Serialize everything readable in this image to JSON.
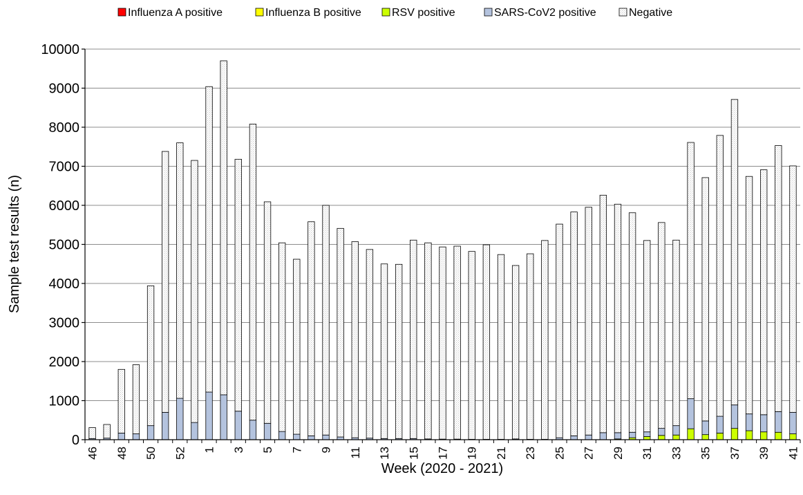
{
  "chart_data": {
    "type": "bar",
    "stacked": true,
    "title": "",
    "xlabel": "Week (2020 - 2021)",
    "ylabel": "Sample test results (n)",
    "ylim": [
      0,
      10000
    ],
    "yticks": [
      0,
      1000,
      2000,
      3000,
      4000,
      5000,
      6000,
      7000,
      8000,
      9000,
      10000
    ],
    "grid": true,
    "legend_position": "top",
    "categories": [
      46,
      47,
      48,
      49,
      50,
      51,
      52,
      53,
      1,
      2,
      3,
      4,
      5,
      6,
      7,
      8,
      9,
      10,
      11,
      12,
      13,
      14,
      15,
      16,
      17,
      18,
      19,
      20,
      21,
      22,
      23,
      24,
      25,
      26,
      27,
      28,
      29,
      30,
      31,
      32,
      33,
      34,
      35,
      36,
      37,
      38,
      39,
      40,
      41
    ],
    "tick_labels": [
      "46",
      "",
      "48",
      "",
      "50",
      "",
      "52",
      "",
      "1",
      "",
      "3",
      "",
      "5",
      "",
      "7",
      "",
      "9",
      "",
      "11",
      "",
      "13",
      "",
      "15",
      "",
      "17",
      "",
      "19",
      "",
      "21",
      "",
      "23",
      "",
      "25",
      "",
      "27",
      "",
      "29",
      "",
      "31",
      "",
      "33",
      "",
      "35",
      "",
      "37",
      "",
      "39",
      "",
      "41"
    ],
    "series": [
      {
        "name": "Influenza A positive",
        "color": "#ff0000",
        "values": [
          0,
          0,
          0,
          0,
          0,
          0,
          0,
          0,
          0,
          0,
          0,
          0,
          0,
          0,
          0,
          0,
          0,
          0,
          0,
          0,
          0,
          0,
          0,
          0,
          0,
          0,
          0,
          0,
          0,
          0,
          0,
          0,
          0,
          0,
          0,
          0,
          0,
          0,
          0,
          0,
          0,
          0,
          0,
          0,
          0,
          0,
          0,
          0,
          0
        ]
      },
      {
        "name": "Influenza B positive",
        "color": "#ffff00",
        "values": [
          0,
          0,
          0,
          0,
          0,
          0,
          0,
          0,
          0,
          0,
          0,
          0,
          0,
          0,
          0,
          0,
          0,
          0,
          0,
          0,
          0,
          0,
          0,
          0,
          0,
          0,
          0,
          0,
          0,
          0,
          0,
          0,
          0,
          0,
          0,
          0,
          0,
          0,
          0,
          0,
          0,
          0,
          0,
          0,
          0,
          0,
          0,
          0,
          0
        ]
      },
      {
        "name": "RSV positive",
        "color": "#ccff00",
        "values": [
          0,
          0,
          0,
          0,
          0,
          0,
          0,
          0,
          0,
          0,
          0,
          0,
          0,
          0,
          0,
          0,
          0,
          0,
          0,
          0,
          0,
          0,
          0,
          0,
          0,
          0,
          0,
          0,
          0,
          0,
          0,
          0,
          0,
          0,
          0,
          0,
          20,
          50,
          80,
          110,
          120,
          280,
          130,
          170,
          290,
          230,
          200,
          190,
          150
        ]
      },
      {
        "name": "SARS-CoV2 positive",
        "color": "#b4c3de",
        "values": [
          30,
          40,
          170,
          150,
          360,
          700,
          1060,
          440,
          1220,
          1150,
          730,
          500,
          420,
          210,
          140,
          100,
          120,
          70,
          50,
          40,
          30,
          30,
          30,
          20,
          15,
          15,
          10,
          10,
          10,
          20,
          10,
          10,
          50,
          100,
          120,
          180,
          160,
          140,
          120,
          180,
          240,
          770,
          350,
          430,
          600,
          430,
          440,
          530,
          550
        ]
      },
      {
        "name": "Negative",
        "color": "#ffffff",
        "values": [
          280,
          350,
          1630,
          1770,
          3580,
          6680,
          6540,
          6710,
          7820,
          8550,
          6450,
          7580,
          5670,
          4830,
          4480,
          5480,
          5880,
          5340,
          5020,
          4830,
          4470,
          4460,
          5080,
          5020,
          4920,
          4940,
          4810,
          4980,
          4730,
          4440,
          4750,
          5090,
          5470,
          5730,
          5830,
          6080,
          5850,
          5620,
          4900,
          5270,
          4750,
          6560,
          6230,
          7190,
          7820,
          6080,
          6270,
          6810,
          6310
        ]
      }
    ]
  }
}
